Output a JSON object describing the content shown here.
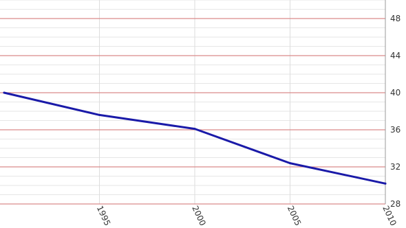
{
  "chart_data": {
    "type": "line",
    "x": [
      1990,
      1995,
      2000,
      2005,
      2010
    ],
    "y_ticks": [
      28,
      32,
      36,
      40,
      44,
      48
    ],
    "y_tick_labels": [
      "28",
      "32",
      "36",
      "40",
      "44",
      "48"
    ],
    "x_ticks": [
      1995,
      2000,
      2005,
      2010
    ],
    "x_tick_labels": [
      "1995",
      "2000",
      "2005",
      "2010"
    ],
    "series": [
      {
        "values": [
          40.0,
          37.6,
          36.1,
          32.4,
          30.2
        ]
      }
    ],
    "xlim": [
      1990,
      2010
    ],
    "ylim": [
      28,
      50
    ],
    "grid": true,
    "title": "",
    "xlabel": "",
    "ylabel": ""
  },
  "colors": {
    "major_grid": "#d98a8a",
    "minor_grid": "#e6e6e6",
    "vertical_grid": "#dddddd",
    "line": "#1a1aa8",
    "axis": "#999999"
  }
}
